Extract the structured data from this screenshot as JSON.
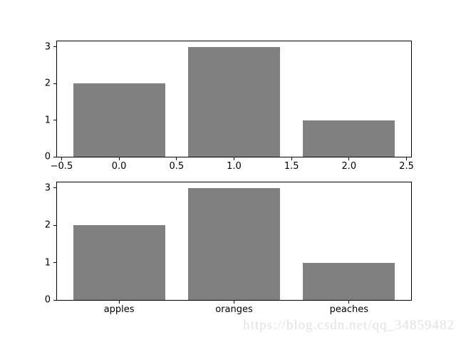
{
  "watermark": {
    "text": "https://blog.csdn.net/qq_34859482",
    "color": "#e4e1de"
  },
  "styles": {
    "bar_color": "#808080",
    "spine_color": "#000000",
    "background": "#ffffff",
    "tick_label_color": "#000000"
  },
  "chart_data": [
    {
      "type": "bar",
      "subplot": "top",
      "title": "",
      "xlabel": "",
      "ylabel": "",
      "x": [
        0,
        1,
        2
      ],
      "values": [
        2,
        3,
        1
      ],
      "bar_width": 0.8,
      "xlim": [
        -0.54,
        2.54
      ],
      "ylim": [
        0,
        3.15
      ],
      "grid": false,
      "legend": null,
      "xticks": [
        {
          "value": -0.5,
          "label": "−0.5"
        },
        {
          "value": 0.0,
          "label": "0.0"
        },
        {
          "value": 0.5,
          "label": "0.5"
        },
        {
          "value": 1.0,
          "label": "1.0"
        },
        {
          "value": 1.5,
          "label": "1.5"
        },
        {
          "value": 2.0,
          "label": "2.0"
        },
        {
          "value": 2.5,
          "label": "2.5"
        }
      ],
      "yticks": [
        {
          "value": 0,
          "label": "0"
        },
        {
          "value": 1,
          "label": "1"
        },
        {
          "value": 2,
          "label": "2"
        },
        {
          "value": 3,
          "label": "3"
        }
      ]
    },
    {
      "type": "bar",
      "subplot": "bottom",
      "title": "",
      "xlabel": "",
      "ylabel": "",
      "categories": [
        "apples",
        "oranges",
        "peaches"
      ],
      "x": [
        0,
        1,
        2
      ],
      "values": [
        2,
        3,
        1
      ],
      "bar_width": 0.8,
      "xlim": [
        -0.54,
        2.54
      ],
      "ylim": [
        0,
        3.15
      ],
      "grid": false,
      "legend": null,
      "xticks": [
        {
          "value": 0,
          "label": "apples"
        },
        {
          "value": 1,
          "label": "oranges"
        },
        {
          "value": 2,
          "label": "peaches"
        }
      ],
      "yticks": [
        {
          "value": 0,
          "label": "0"
        },
        {
          "value": 1,
          "label": "1"
        },
        {
          "value": 2,
          "label": "2"
        },
        {
          "value": 3,
          "label": "3"
        }
      ]
    }
  ]
}
